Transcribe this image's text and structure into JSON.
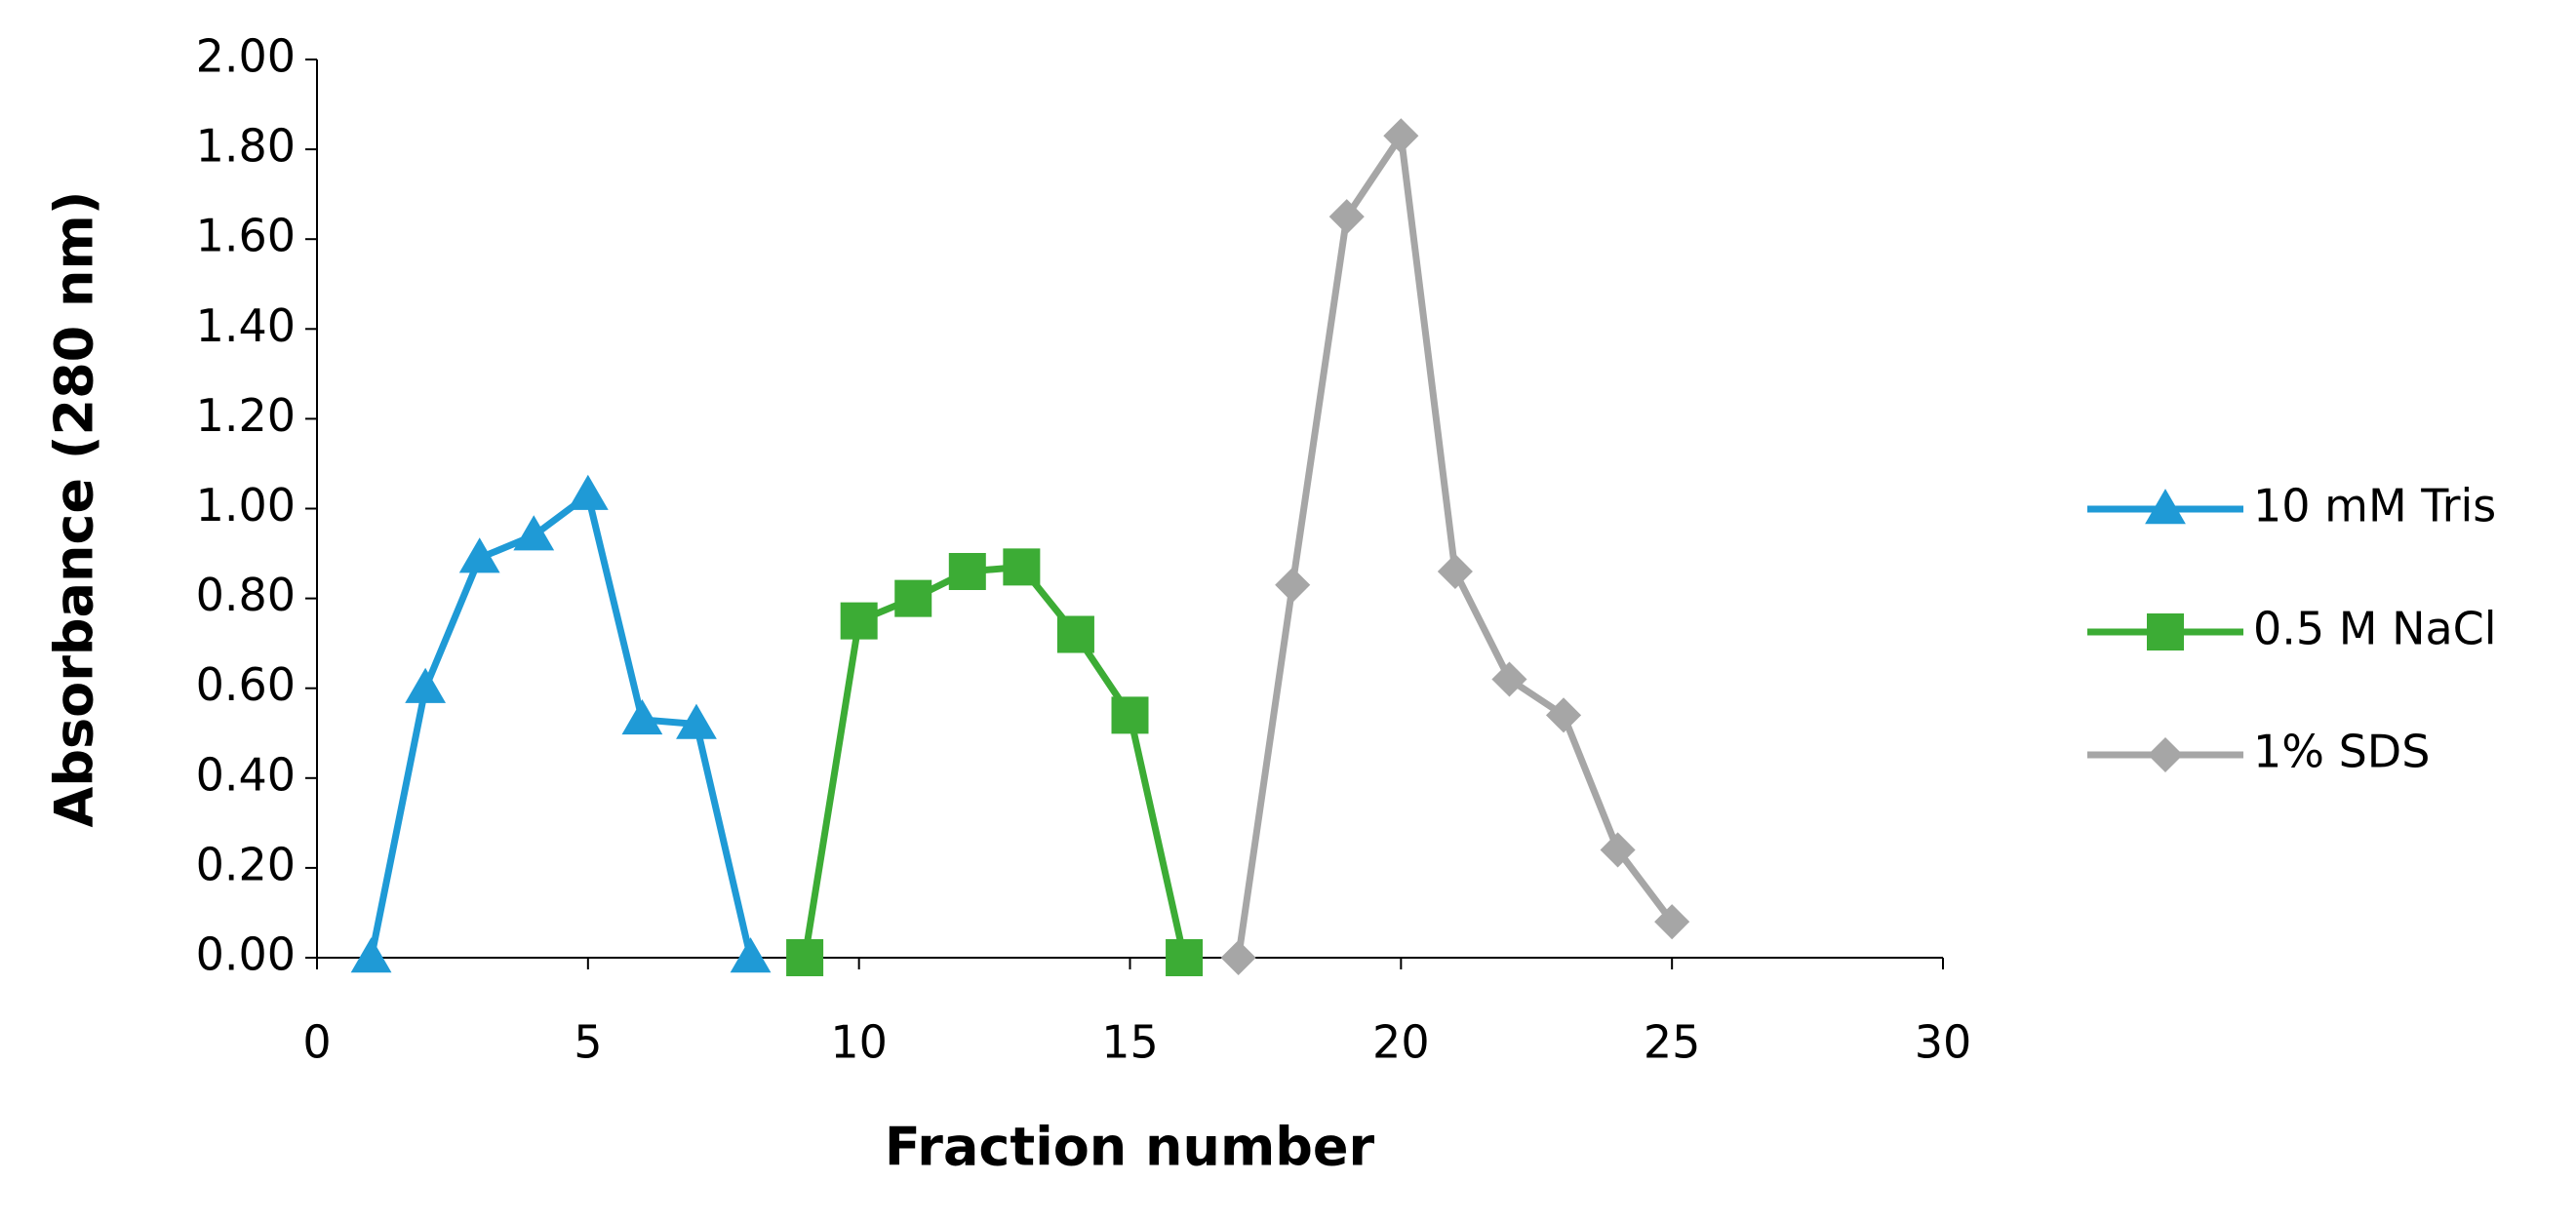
{
  "chart_data": {
    "type": "line",
    "x_label": "Fraction number",
    "y_label": "Absorbance (280 nm)",
    "xlim": [
      0,
      30
    ],
    "xticks": [
      0,
      5,
      10,
      15,
      20,
      25,
      30
    ],
    "ylim": [
      0,
      2
    ],
    "yticks": [
      {
        "value": 0,
        "label": "0.00"
      },
      {
        "value": 0.2,
        "label": "0.20"
      },
      {
        "value": 0.4,
        "label": "0.40"
      },
      {
        "value": 0.6,
        "label": "0.60"
      },
      {
        "value": 0.8,
        "label": "0.80"
      },
      {
        "value": 1,
        "label": "1.00"
      },
      {
        "value": 1.2,
        "label": "1.20"
      },
      {
        "value": 1.4,
        "label": "1.40"
      },
      {
        "value": 1.6,
        "label": "1.60"
      },
      {
        "value": 1.8,
        "label": "1.80"
      },
      {
        "value": 2,
        "label": "2.00"
      }
    ],
    "grid": false,
    "legend": "right",
    "series": [
      {
        "name": "10 mM Tris",
        "color": "#1f9ad6",
        "marker": "triangle",
        "x": [
          1,
          2,
          3,
          4,
          5,
          6,
          7,
          8
        ],
        "values": [
          0,
          0.6,
          0.89,
          0.94,
          1.03,
          0.53,
          0.52,
          0
        ]
      },
      {
        "name": "0.5 M NaCl",
        "color": "#3cac35",
        "marker": "square",
        "x": [
          9,
          10,
          11,
          12,
          13,
          14,
          15,
          16
        ],
        "values": [
          0,
          0.75,
          0.8,
          0.86,
          0.87,
          0.72,
          0.54,
          0
        ]
      },
      {
        "name": "1% SDS",
        "color": "#a6a6a6",
        "marker": "diamond",
        "x": [
          17,
          18,
          19,
          20,
          21,
          22,
          23,
          24,
          25
        ],
        "values": [
          0,
          0.83,
          1.65,
          1.83,
          0.86,
          0.62,
          0.54,
          0.24,
          0.08
        ]
      }
    ]
  }
}
